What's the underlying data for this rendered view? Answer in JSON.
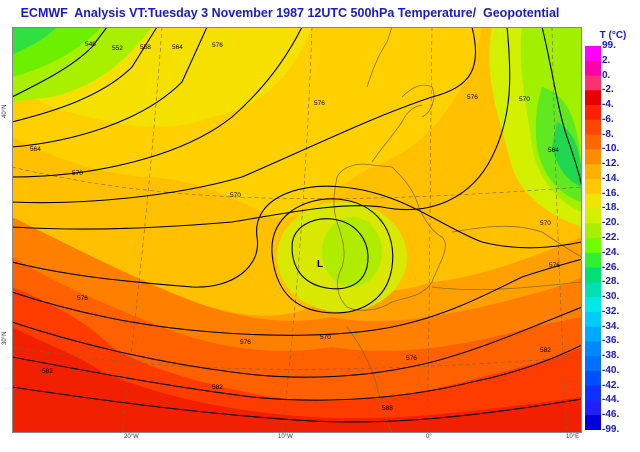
{
  "title": "ECMWF  Analysis VT:Tuesday 3 November 1987 12UTC 500hPa Temperature/  Geopotential",
  "legend": {
    "title": "T (°C)",
    "labels": [
      "99.",
      "2.",
      "0.",
      "-2.",
      "-4.",
      "-6.",
      "-8.",
      "-10.",
      "-12.",
      "-14.",
      "-16.",
      "-18.",
      "-20.",
      "-22.",
      "-24.",
      "-26.",
      "-28.",
      "-30.",
      "-32.",
      "-34.",
      "-36.",
      "-38.",
      "-40.",
      "-42.",
      "-44.",
      "-46.",
      "-99."
    ],
    "colors": [
      "#ff00ff",
      "#ff00aa",
      "#ff3070",
      "#e80000",
      "#ff2000",
      "#ff4600",
      "#ff6800",
      "#ff8c00",
      "#ffb000",
      "#ffc800",
      "#f0e400",
      "#d2f000",
      "#a8f000",
      "#70ff00",
      "#30f030",
      "#00e070",
      "#00e0b0",
      "#00e8e8",
      "#00ccff",
      "#00a8ff",
      "#0088ff",
      "#0070ff",
      "#0050ff",
      "#1030ff",
      "#2020ff",
      "#0000dd"
    ]
  },
  "contours": {
    "low_label": "L",
    "values": [
      "546",
      "552",
      "558",
      "564",
      "570",
      "576",
      "582",
      "588"
    ]
  },
  "axes": {
    "lon_labels": [
      "20°W",
      "10°W",
      "0°",
      "10°E"
    ],
    "lat_labels": [
      "40°N",
      "30°N"
    ]
  }
}
